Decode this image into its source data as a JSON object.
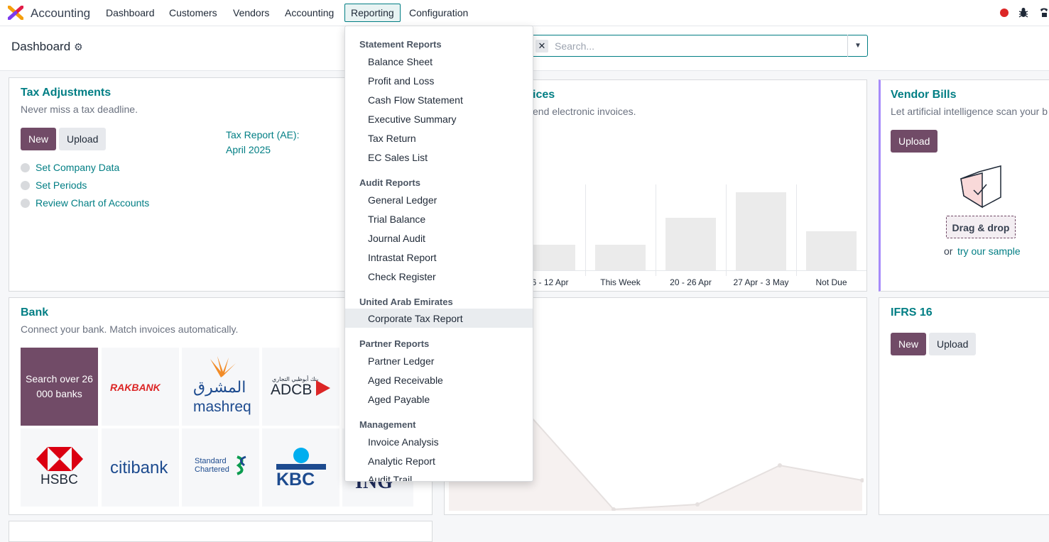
{
  "navbar": {
    "app_name": "Accounting",
    "menu": [
      "Dashboard",
      "Customers",
      "Vendors",
      "Accounting",
      "Reporting",
      "Configuration"
    ],
    "active_menu": "Reporting"
  },
  "control": {
    "breadcrumb": "Dashboard",
    "search_placeholder": "Search..."
  },
  "tax_card": {
    "title": "Tax Adjustments",
    "subtitle": "Never miss a tax deadline.",
    "new_label": "New",
    "upload_label": "Upload",
    "report_label": "Tax Report (AE):",
    "report_period": "April 2025",
    "steps": [
      "Set Company Data",
      "Set Periods",
      "Review Chart of Accounts"
    ]
  },
  "invoices_card": {
    "title_fragment": "ices",
    "subtitle_fragment": "end electronic invoices.",
    "chart_data": {
      "type": "bar",
      "categories": [
        "6 - 12 Apr",
        "This Week",
        "20 - 26 Apr",
        "27 Apr - 3 May",
        "Not Due"
      ],
      "values": [
        36,
        36,
        73,
        109,
        55
      ],
      "ylim": [
        0,
        120
      ]
    }
  },
  "vendor_card": {
    "title": "Vendor Bills",
    "subtitle": "Let artificial intelligence scan your b",
    "upload_label": "Upload",
    "drag_label": "Drag & drop",
    "or_label": "or",
    "sample_link": "try our sample"
  },
  "bank_card": {
    "title": "Bank",
    "subtitle": "Connect your bank. Match invoices automatically.",
    "search_tile": "Search over 26 000 banks",
    "banks": [
      "RAKBANK",
      "mashreq",
      "ADCB",
      "HSBC",
      "citibank",
      "Standard Chartered",
      "KBC",
      "ING"
    ],
    "mashreq_arabic": "المشرق",
    "adcb_arabic": "بنك أبوظبي التجاري"
  },
  "ifrs_card": {
    "title": "IFRS 16",
    "new_label": "New",
    "upload_label": "Upload"
  },
  "reporting_menu": {
    "sections": [
      {
        "header": "Statement Reports",
        "items": [
          "Balance Sheet",
          "Profit and Loss",
          "Cash Flow Statement",
          "Executive Summary",
          "Tax Return",
          "EC Sales List"
        ]
      },
      {
        "header": "Audit Reports",
        "items": [
          "General Ledger",
          "Trial Balance",
          "Journal Audit",
          "Intrastat Report",
          "Check Register"
        ]
      },
      {
        "header": "United Arab Emirates",
        "items": [
          "Corporate Tax Report"
        ]
      },
      {
        "header": "Partner Reports",
        "items": [
          "Partner Ledger",
          "Aged Receivable",
          "Aged Payable"
        ]
      },
      {
        "header": "Management",
        "items": [
          "Invoice Analysis",
          "Analytic Report",
          "Audit Trail"
        ]
      }
    ],
    "highlighted_item": "Corporate Tax Report"
  },
  "colors": {
    "primary": "#714b67",
    "link": "#017e84"
  }
}
